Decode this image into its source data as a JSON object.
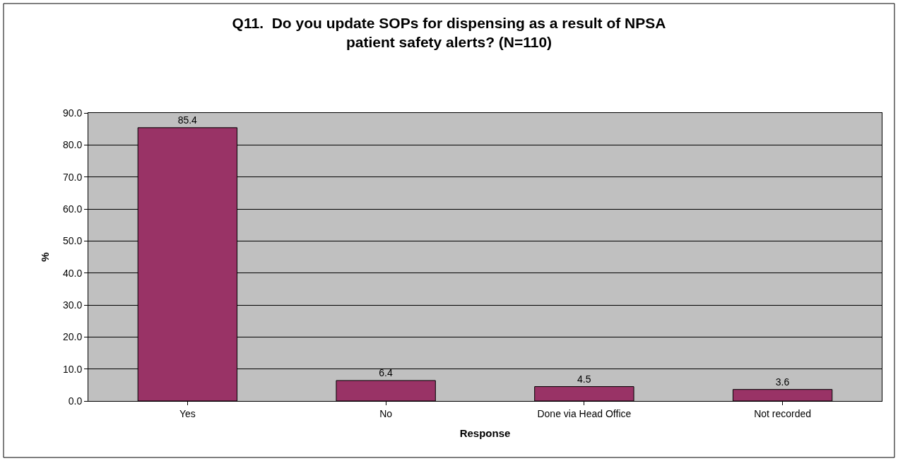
{
  "chart_data": {
    "type": "bar",
    "title": "Q11.  Do you update SOPs for dispensing as a result of NPSA patient safety alerts? (N=110)",
    "xlabel": "Response",
    "ylabel": "%",
    "categories": [
      "Yes",
      "No",
      "Done via Head Office",
      "Not recorded"
    ],
    "values": [
      85.4,
      6.4,
      4.5,
      3.6
    ],
    "color": "#993366",
    "ylim": [
      0,
      90
    ],
    "yticks": [
      {
        "value": 0,
        "label": "0.0"
      },
      {
        "value": 10,
        "label": "10.0"
      },
      {
        "value": 20,
        "label": "20.0"
      },
      {
        "value": 30,
        "label": "30.0"
      },
      {
        "value": 40,
        "label": "40.0"
      },
      {
        "value": 50,
        "label": "50.0"
      },
      {
        "value": 60,
        "label": "60.0"
      },
      {
        "value": 70,
        "label": "70.0"
      },
      {
        "value": 80,
        "label": "80.0"
      },
      {
        "value": 90,
        "label": "90.0"
      }
    ],
    "grid": "y",
    "data_labels": true,
    "legend": false
  }
}
